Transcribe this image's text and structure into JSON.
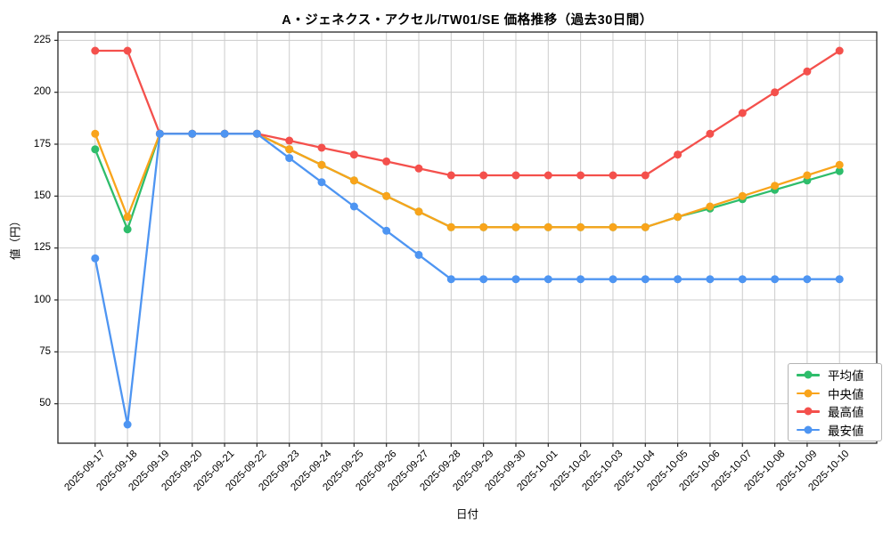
{
  "colors": {
    "background": "#ffffff",
    "grid": "#cccccc",
    "axis": "#262626",
    "tick_text": "#000000"
  },
  "chart_data": {
    "type": "line",
    "title": "A・ジェネクス・アクセル/TW01/SE 価格推移（過去30日間）",
    "xlabel": "日付",
    "ylabel": "値（円）",
    "x": [
      "2025-09-17",
      "2025-09-18",
      "2025-09-19",
      "2025-09-20",
      "2025-09-21",
      "2025-09-22",
      "2025-09-23",
      "2025-09-24",
      "2025-09-25",
      "2025-09-26",
      "2025-09-27",
      "2025-09-28",
      "2025-09-29",
      "2025-09-30",
      "2025-10-01",
      "2025-10-02",
      "2025-10-03",
      "2025-10-04",
      "2025-10-05",
      "2025-10-06",
      "2025-10-07",
      "2025-10-08",
      "2025-10-09",
      "2025-10-10"
    ],
    "series": [
      {
        "name": "平均値",
        "color": "#2ebd6b",
        "values": [
          172.5,
          134,
          180,
          180,
          180,
          180,
          172.5,
          165,
          157.5,
          150,
          142.5,
          135,
          135,
          135,
          135,
          135,
          135,
          135,
          140,
          144,
          148.5,
          153,
          157.5,
          162
        ]
      },
      {
        "name": "中央値",
        "color": "#f9a41b",
        "values": [
          180,
          140,
          180,
          180,
          180,
          180,
          172.5,
          165,
          157.5,
          150,
          142.5,
          135,
          135,
          135,
          135,
          135,
          135,
          135,
          140,
          145,
          150,
          155,
          160,
          165
        ]
      },
      {
        "name": "最高値",
        "color": "#f4504c",
        "values": [
          220,
          220,
          180,
          180,
          180,
          180,
          176.7,
          173.3,
          170,
          166.7,
          163.3,
          160,
          160,
          160,
          160,
          160,
          160,
          160,
          170,
          180,
          190,
          200,
          210,
          220
        ]
      },
      {
        "name": "最安値",
        "color": "#4e95f2",
        "values": [
          120,
          40,
          180,
          180,
          180,
          180,
          168.3,
          156.7,
          145,
          133.3,
          121.7,
          110,
          110,
          110,
          110,
          110,
          110,
          110,
          110,
          110,
          110,
          110,
          110,
          110
        ]
      }
    ],
    "yticks": [
      50,
      75,
      100,
      125,
      150,
      175,
      200,
      225
    ],
    "ylim": [
      31,
      229
    ],
    "grid": true,
    "legend_position": "lower-right",
    "legend_entries": [
      "平均値",
      "中央値",
      "最高値",
      "最安値"
    ]
  }
}
